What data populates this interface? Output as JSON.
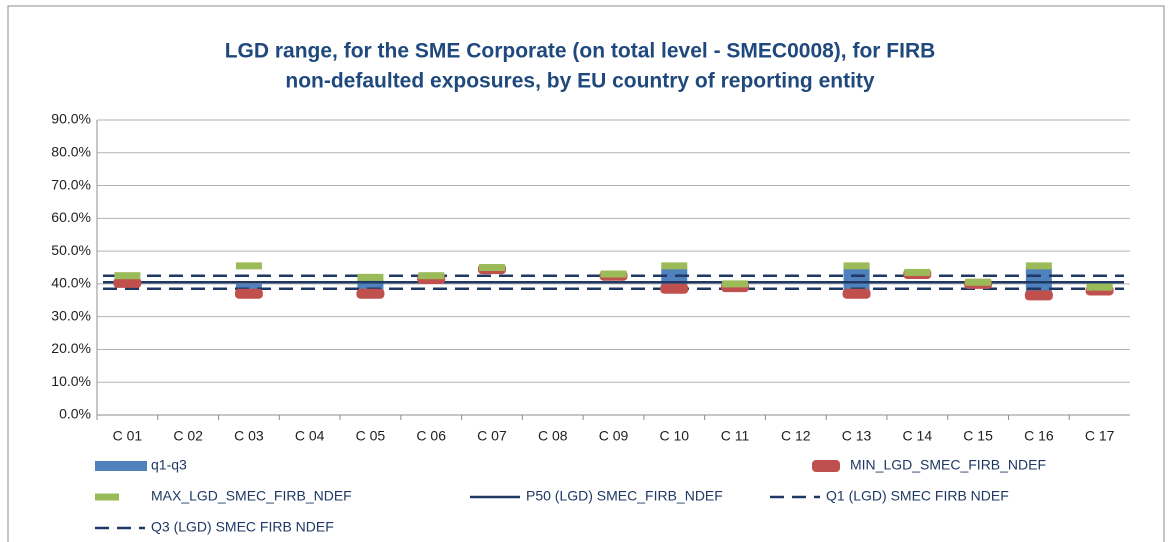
{
  "chart_data": {
    "type": "range",
    "title": [
      "LGD range, for the SME Corporate (on total level - SMEC0008), for FIRB",
      "non-defaulted exposures, by EU country of reporting entity"
    ],
    "categories": [
      "C 01",
      "C 02",
      "C 03",
      "C 04",
      "C 05",
      "C 06",
      "C 07",
      "C 08",
      "C 09",
      "C 10",
      "C 11",
      "C 12",
      "C 13",
      "C 14",
      "C 15",
      "C 16",
      "C 17"
    ],
    "ylim": [
      0,
      90
    ],
    "yticks": [
      {
        "value": 0,
        "label": "0.0%"
      },
      {
        "value": 10,
        "label": "10.0%"
      },
      {
        "value": 20,
        "label": "20.0%"
      },
      {
        "value": 30,
        "label": "30.0%"
      },
      {
        "value": 40,
        "label": "40.0%"
      },
      {
        "value": 50,
        "label": "50.0%"
      },
      {
        "value": 60,
        "label": "60.0%"
      },
      {
        "value": 70,
        "label": "70.0%"
      },
      {
        "value": 80,
        "label": "80.0%"
      },
      {
        "value": 90,
        "label": "90.0%"
      }
    ],
    "grid": true,
    "series": [
      {
        "name": "q1-q3",
        "color": "#4f81bd",
        "kind": "range",
        "low": [
          null,
          null,
          38,
          null,
          37.5,
          null,
          null,
          null,
          null,
          38,
          null,
          null,
          38,
          null,
          null,
          37,
          null
        ],
        "high": [
          null,
          null,
          40,
          null,
          41.5,
          null,
          null,
          null,
          null,
          44.8,
          null,
          null,
          45,
          null,
          null,
          45,
          null
        ]
      },
      {
        "name": "MIN_LGD_SMEC_FIRB_NDEF",
        "color": "#c0504d",
        "kind": "min",
        "values": [
          40.3,
          null,
          37,
          null,
          37,
          41.5,
          44.5,
          null,
          42.5,
          38.5,
          39,
          null,
          37,
          43,
          40,
          36.5,
          38
        ]
      },
      {
        "name": "MAX_LGD_SMEC_FIRB_NDEF",
        "color": "#9bbb59",
        "kind": "max",
        "values": [
          42.5,
          null,
          45.5,
          null,
          42,
          42.5,
          45,
          null,
          43,
          45.5,
          40,
          null,
          45.5,
          43.5,
          40.5,
          45.5,
          39
        ]
      },
      {
        "name": "P50 (LGD) SMEC_FIRB_NDEF",
        "color": "#1f3864",
        "kind": "level",
        "dash": "solid",
        "value": 40.5
      },
      {
        "name": "Q1 (LGD) SMEC FIRB NDEF",
        "color": "#1f3864",
        "kind": "level",
        "dash": "dashed",
        "value": 38.5
      },
      {
        "name": "Q3 (LGD) SMEC FIRB NDEF",
        "color": "#1f3864",
        "kind": "level",
        "dash": "dashed",
        "value": 42.5
      }
    ]
  }
}
